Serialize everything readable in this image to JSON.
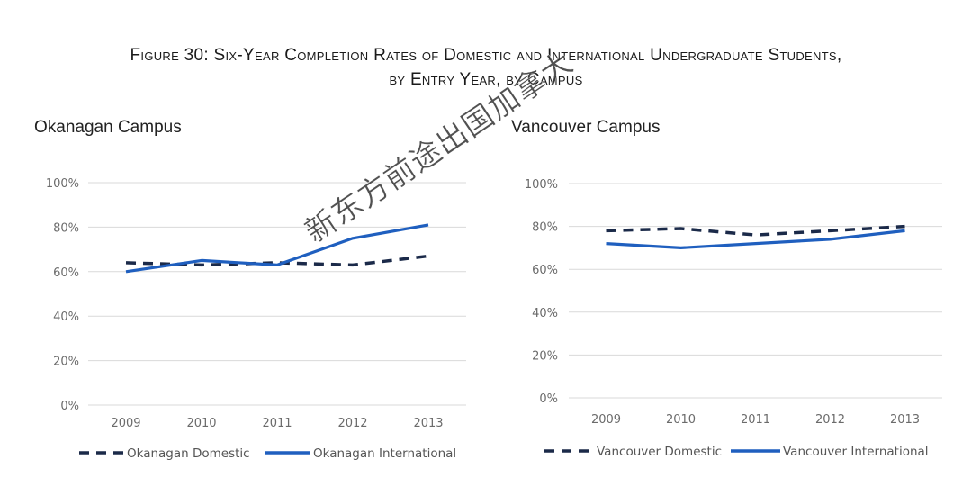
{
  "figure": {
    "title_line1": "Figure 30: Six-Year Completion Rates of Domestic and International Undergraduate Students,",
    "title_line2": "by Entry Year, by Campus"
  },
  "watermark": "新东方前途出国加拿大",
  "colors": {
    "domestic": "#1b2a49",
    "international": "#1f5fbf",
    "grid": "#d9d9d9",
    "tick": "#6b6b6b"
  },
  "chart_data": [
    {
      "type": "line",
      "title": "Okanagan Campus",
      "categories": [
        "2009",
        "2010",
        "2011",
        "2012",
        "2013"
      ],
      "ylim": [
        0,
        100
      ],
      "yticks": [
        0,
        20,
        40,
        60,
        80,
        100
      ],
      "ytick_labels": [
        "0%",
        "20%",
        "40%",
        "60%",
        "80%",
        "100%"
      ],
      "grid": true,
      "legend_position": "bottom",
      "series": [
        {
          "name": "Okanagan Domestic",
          "style": "dashed",
          "values": [
            64,
            63,
            64,
            63,
            67
          ]
        },
        {
          "name": "Okanagan International",
          "style": "solid",
          "values": [
            60,
            65,
            63,
            75,
            81
          ]
        }
      ]
    },
    {
      "type": "line",
      "title": "Vancouver Campus",
      "categories": [
        "2009",
        "2010",
        "2011",
        "2012",
        "2013"
      ],
      "ylim": [
        0,
        100
      ],
      "yticks": [
        0,
        20,
        40,
        60,
        80,
        100
      ],
      "ytick_labels": [
        "0%",
        "20%",
        "40%",
        "60%",
        "80%",
        "100%"
      ],
      "grid": true,
      "legend_position": "bottom",
      "series": [
        {
          "name": "Vancouver Domestic",
          "style": "dashed",
          "values": [
            78,
            79,
            76,
            78,
            80
          ]
        },
        {
          "name": "Vancouver International",
          "style": "solid",
          "values": [
            72,
            70,
            72,
            74,
            78
          ]
        }
      ]
    }
  ]
}
